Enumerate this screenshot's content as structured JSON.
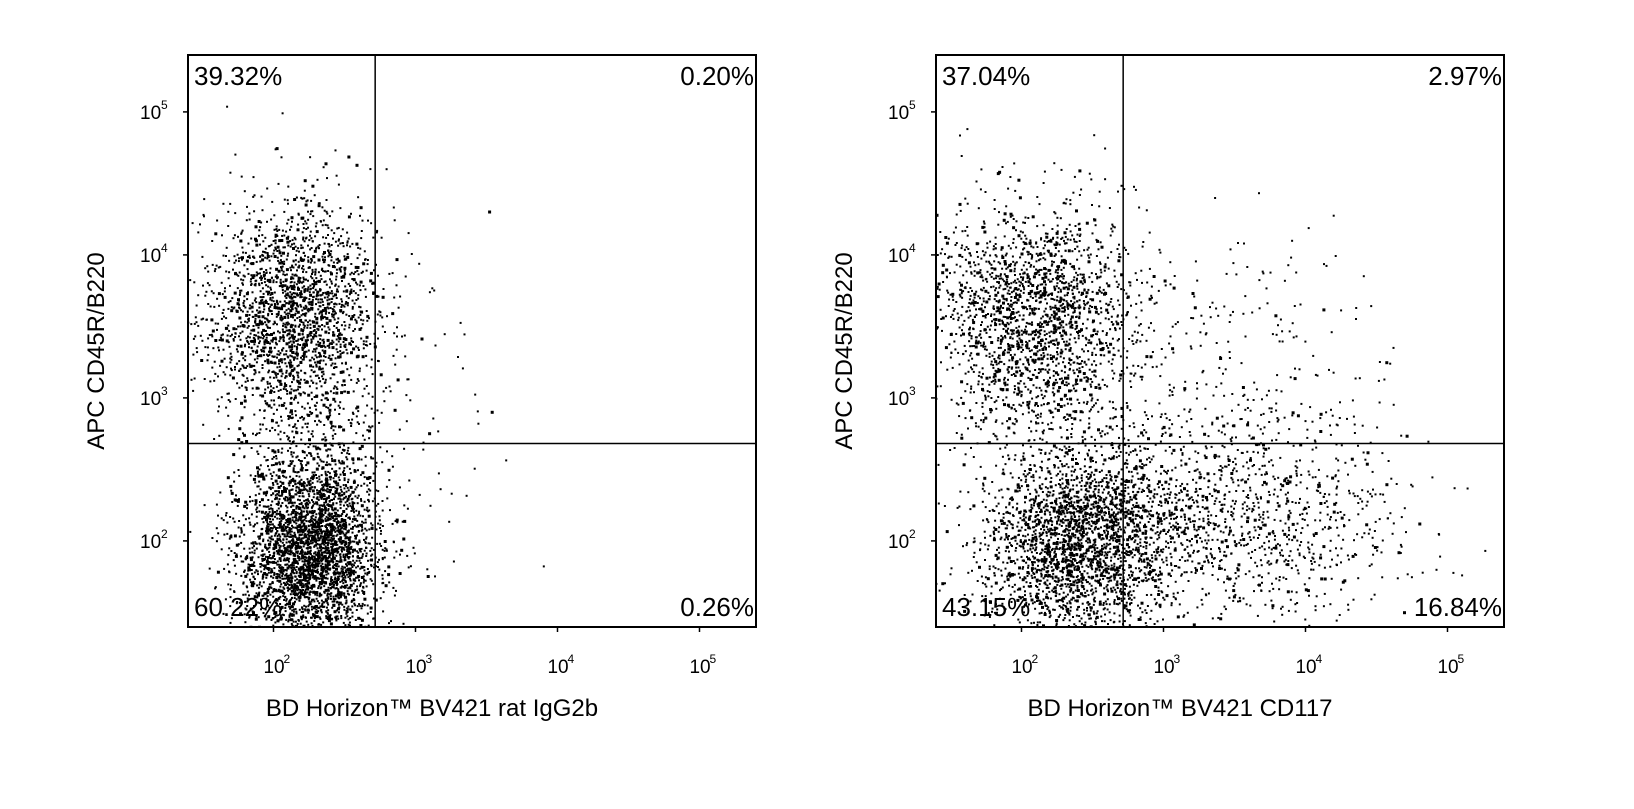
{
  "chart_data": [
    {
      "type": "scatter",
      "xlabel": "BD Horizon™ BV421 rat IgG2b",
      "ylabel": "APC CD45R/B220",
      "xscale": "log",
      "yscale": "log",
      "xlim": [
        25,
        250000
      ],
      "ylim": [
        25,
        250000
      ],
      "x_ticks": [
        "10",
        "10",
        "10",
        "10"
      ],
      "x_tick_exponents": [
        "2",
        "3",
        "4",
        "5"
      ],
      "x_tick_values": [
        100,
        1000,
        10000,
        100000
      ],
      "y_ticks": [
        "10",
        "10",
        "10",
        "10"
      ],
      "y_tick_exponents": [
        "2",
        "3",
        "4",
        "5"
      ],
      "y_tick_values": [
        100,
        1000,
        10000,
        100000
      ],
      "gate": {
        "x": 520,
        "y": 480
      },
      "quadrants": {
        "upper_left": "39.32%",
        "upper_right": "0.20%",
        "lower_left": "60.22%",
        "lower_right": "0.26%"
      },
      "populations": [
        {
          "cx": 140,
          "cy": 3500,
          "sx": 0.3,
          "sy": 0.4,
          "n": 2200
        },
        {
          "cx": 180,
          "cy": 90,
          "sx": 0.25,
          "sy": 0.35,
          "n": 3400
        },
        {
          "cx": 1400,
          "cy": 800,
          "sx": 0.3,
          "sy": 0.5,
          "n": 30
        }
      ],
      "seed": 11
    },
    {
      "type": "scatter",
      "xlabel": "BD Horizon™ BV421 CD117",
      "ylabel": "APC CD45R/B220",
      "xscale": "log",
      "yscale": "log",
      "xlim": [
        25,
        250000
      ],
      "ylim": [
        25,
        250000
      ],
      "x_ticks": [
        "10",
        "10",
        "10",
        "10"
      ],
      "x_tick_exponents": [
        "2",
        "3",
        "4",
        "5"
      ],
      "x_tick_values": [
        100,
        1000,
        10000,
        100000
      ],
      "y_ticks": [
        "10",
        "10",
        "10",
        "10"
      ],
      "y_tick_exponents": [
        "2",
        "3",
        "4",
        "5"
      ],
      "y_tick_values": [
        100,
        1000,
        10000,
        100000
      ],
      "gate": {
        "x": 520,
        "y": 480
      },
      "quadrants": {
        "upper_left": "37.04%",
        "upper_right": "2.97%",
        "lower_left": "43.15%",
        "lower_right": "16.84%"
      },
      "populations": [
        {
          "cx": 120,
          "cy": 3500,
          "sx": 0.35,
          "sy": 0.4,
          "n": 2000
        },
        {
          "cx": 260,
          "cy": 100,
          "sx": 0.35,
          "sy": 0.35,
          "n": 2700
        },
        {
          "cx": 3500,
          "cy": 150,
          "sx": 0.55,
          "sy": 0.4,
          "n": 1100
        },
        {
          "cx": 2500,
          "cy": 2000,
          "sx": 0.55,
          "sy": 0.5,
          "n": 230
        }
      ],
      "seed": 23
    }
  ]
}
